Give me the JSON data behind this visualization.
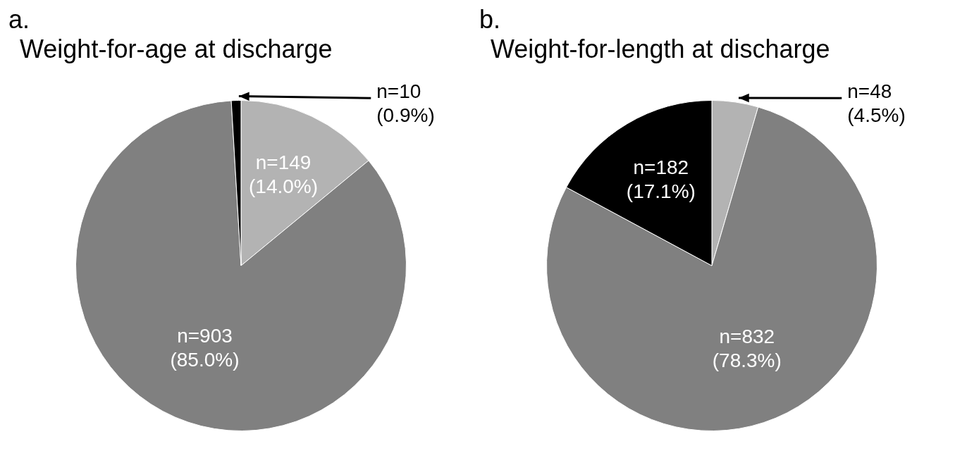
{
  "chart_data": [
    {
      "type": "pie",
      "title": "Weight-for-age at discharge",
      "annotations": [
        "a."
      ],
      "categories": [
        null,
        null,
        null
      ],
      "values": [
        149,
        903,
        10
      ],
      "colors": [
        "#b3b3b3",
        "#808080",
        "#000000"
      ],
      "value_labels": [
        "n=149\n(14.0%)",
        "n=903\n(85.0%)",
        "n=10\n(0.9%)"
      ]
    },
    {
      "type": "pie",
      "title": "Weight-for-length at discharge",
      "annotations": [
        "b."
      ],
      "categories": [
        null,
        null,
        null
      ],
      "values": [
        48,
        832,
        182
      ],
      "colors": [
        "#b3b3b3",
        "#808080",
        "#000000"
      ],
      "value_labels": [
        "n=48\n(4.5%)",
        "n=832\n(78.3%)",
        "n=182\n(17.1%)"
      ]
    }
  ]
}
